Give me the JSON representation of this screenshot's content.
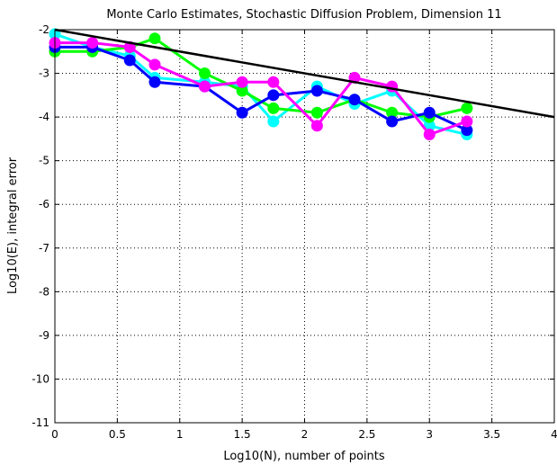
{
  "chart_data": {
    "type": "line",
    "title": "Monte Carlo Estimates, Stochastic Diffusion Problem, Dimension 11",
    "xlabel": "Log10(N), number of points",
    "ylabel": "Log10(E), integral error",
    "xlim": [
      0,
      4
    ],
    "ylim": [
      -11,
      -2
    ],
    "xticks": [
      0,
      0.5,
      1,
      1.5,
      2,
      2.5,
      3,
      3.5,
      4
    ],
    "xtick_labels": [
      "0",
      "0.5",
      "1",
      "1.5",
      "2",
      "2.5",
      "3",
      "3.5",
      "4"
    ],
    "yticks": [
      -2,
      -3,
      -4,
      -5,
      -6,
      -7,
      -8,
      -9,
      -10,
      -11
    ],
    "ytick_labels": [
      "-2",
      "-3",
      "-4",
      "-5",
      "-6",
      "-7",
      "-8",
      "-9",
      "-10",
      "-11"
    ],
    "grid": true,
    "x": [
      0,
      0.3,
      0.6,
      0.8,
      1.2,
      1.5,
      1.75,
      2.1,
      2.4,
      2.7,
      3.0,
      3.3
    ],
    "series": [
      {
        "color": "#00ffff",
        "values": [
          -2.1,
          -2.4,
          -2.6,
          -3.1,
          -3.2,
          -3.3,
          -4.1,
          -3.3,
          -3.7,
          -3.4,
          -4.2,
          -4.4
        ]
      },
      {
        "color": "#00ff00",
        "values": [
          -2.5,
          -2.5,
          -2.4,
          -2.2,
          -3.0,
          -3.4,
          -3.8,
          -3.9,
          -3.6,
          -3.9,
          -4.0,
          -3.8
        ]
      },
      {
        "color": "#0000ff",
        "values": [
          -2.4,
          -2.4,
          -2.7,
          -3.2,
          -3.3,
          -3.9,
          -3.5,
          -3.4,
          -3.6,
          -4.1,
          -3.9,
          -4.3
        ]
      },
      {
        "color": "#ff00ff",
        "values": [
          -2.3,
          -2.3,
          -2.4,
          -2.8,
          -3.3,
          -3.2,
          -3.2,
          -4.2,
          -3.1,
          -3.3,
          -4.4,
          -4.1
        ]
      }
    ],
    "reference_line": {
      "color": "#000000",
      "x": [
        0,
        4
      ],
      "values": [
        -2,
        -4
      ]
    }
  }
}
